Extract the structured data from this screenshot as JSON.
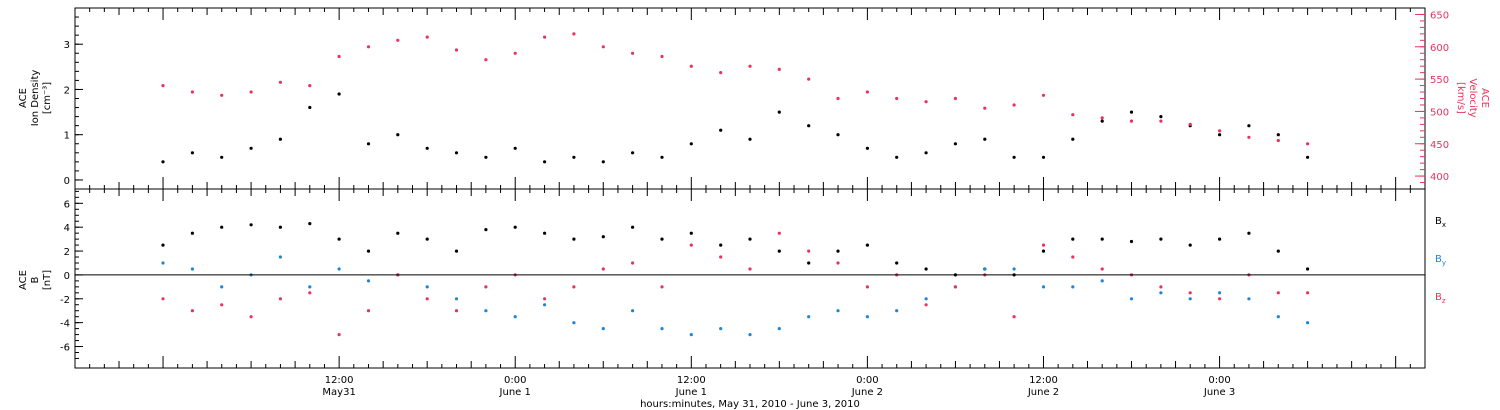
{
  "chart_data": [
    {
      "type": "scatter",
      "panel": "top",
      "ylabel_left": [
        "ACE",
        "Ion Density",
        "[cm⁻³]"
      ],
      "ylabel_right": [
        "ACE",
        "Velocity",
        "[km/s]"
      ],
      "ylim_left": [
        -0.2,
        3.8
      ],
      "ylim_right": [
        380,
        660
      ],
      "yticks_left": [
        0,
        1,
        2,
        3
      ],
      "yticks_right": [
        400,
        450,
        500,
        550,
        600,
        650
      ],
      "grid": false,
      "series": [
        {
          "axis": "left",
          "color": "#000000",
          "x": [
            0,
            2,
            4,
            6,
            8,
            10,
            12,
            14,
            16,
            18,
            20,
            22,
            24,
            26,
            28,
            30,
            32,
            34,
            36,
            38,
            40,
            42,
            44,
            46,
            48,
            50,
            52,
            54,
            56,
            58,
            60,
            62,
            64,
            66,
            68,
            70,
            72,
            74,
            76,
            78
          ],
          "values": [
            0.4,
            0.6,
            0.5,
            0.7,
            0.9,
            1.6,
            1.9,
            0.8,
            1.0,
            0.7,
            0.6,
            0.5,
            0.7,
            0.4,
            0.5,
            0.4,
            0.6,
            0.5,
            0.8,
            1.1,
            0.9,
            1.5,
            1.2,
            1.0,
            0.7,
            0.5,
            0.6,
            0.8,
            0.9,
            0.5,
            0.5,
            0.9,
            1.3,
            1.5,
            1.4,
            1.2,
            1.0,
            1.2,
            1.0,
            0.5
          ]
        },
        {
          "axis": "right",
          "color": "#e8335e",
          "x": [
            0,
            2,
            4,
            6,
            8,
            10,
            12,
            14,
            16,
            18,
            20,
            22,
            24,
            26,
            28,
            30,
            32,
            34,
            36,
            38,
            40,
            42,
            44,
            46,
            48,
            50,
            52,
            54,
            56,
            58,
            60,
            62,
            64,
            66,
            68,
            70,
            72,
            74,
            76,
            78
          ],
          "values": [
            540,
            530,
            525,
            530,
            545,
            540,
            585,
            600,
            610,
            615,
            595,
            580,
            590,
            615,
            620,
            600,
            590,
            585,
            570,
            560,
            570,
            565,
            550,
            520,
            530,
            520,
            515,
            520,
            505,
            510,
            525,
            495,
            490,
            485,
            485,
            480,
            470,
            460,
            455,
            450
          ]
        }
      ]
    },
    {
      "type": "scatter",
      "panel": "bottom",
      "ylabel": [
        "ACE",
        "B",
        "[nT]"
      ],
      "ylim": [
        -7.8,
        7.2
      ],
      "yticks": [
        -6,
        -4,
        -2,
        0,
        2,
        4,
        6
      ],
      "zero_line": true,
      "grid": false,
      "legend_position": "right",
      "series": [
        {
          "name": "Bx",
          "color": "#000000",
          "x": [
            0,
            2,
            4,
            6,
            8,
            10,
            12,
            14,
            16,
            18,
            20,
            22,
            24,
            26,
            28,
            30,
            32,
            34,
            36,
            38,
            40,
            42,
            44,
            46,
            48,
            50,
            52,
            54,
            56,
            58,
            60,
            62,
            64,
            66,
            68,
            70,
            72,
            74,
            76,
            78
          ],
          "values": [
            2.5,
            3.5,
            4.0,
            4.2,
            4.0,
            4.3,
            3.0,
            2.0,
            3.5,
            3.0,
            2.0,
            3.8,
            4.0,
            3.5,
            3.0,
            3.2,
            4.0,
            3.0,
            3.5,
            2.5,
            3.0,
            2.0,
            1.0,
            2.0,
            2.5,
            1.0,
            0.5,
            0.0,
            0.5,
            0.0,
            2.0,
            3.0,
            3.0,
            2.8,
            3.0,
            2.5,
            3.0,
            3.5,
            2.0,
            0.5
          ]
        },
        {
          "name": "By",
          "color": "#1f86d6",
          "x": [
            0,
            2,
            4,
            6,
            8,
            10,
            12,
            14,
            16,
            18,
            20,
            22,
            24,
            26,
            28,
            30,
            32,
            34,
            36,
            38,
            40,
            42,
            44,
            46,
            48,
            50,
            52,
            54,
            56,
            58,
            60,
            62,
            64,
            66,
            68,
            70,
            72,
            74,
            76,
            78
          ],
          "values": [
            1.0,
            0.5,
            -1.0,
            0.0,
            1.5,
            -1.0,
            0.5,
            -0.5,
            0.0,
            -1.0,
            -2.0,
            -3.0,
            -3.5,
            -2.5,
            -4.0,
            -4.5,
            -3.0,
            -4.5,
            -5.0,
            -4.5,
            -5.0,
            -4.5,
            -3.5,
            -3.0,
            -3.5,
            -3.0,
            -2.0,
            -1.0,
            0.5,
            0.5,
            -1.0,
            -1.0,
            -0.5,
            -2.0,
            -1.5,
            -2.0,
            -1.5,
            -2.0,
            -3.5,
            -4.0
          ]
        },
        {
          "name": "Bz",
          "color": "#e8335e",
          "x": [
            0,
            2,
            4,
            6,
            8,
            10,
            12,
            14,
            16,
            18,
            20,
            22,
            24,
            26,
            28,
            30,
            32,
            34,
            36,
            38,
            40,
            42,
            44,
            46,
            48,
            50,
            52,
            54,
            56,
            58,
            60,
            62,
            64,
            66,
            68,
            70,
            72,
            74,
            76,
            78
          ],
          "values": [
            -2.0,
            -3.0,
            -2.5,
            -3.5,
            -2.0,
            -1.5,
            -5.0,
            -3.0,
            0.0,
            -2.0,
            -3.0,
            -1.0,
            0.0,
            -2.0,
            -1.0,
            0.5,
            1.0,
            -1.0,
            2.5,
            1.5,
            0.5,
            3.5,
            2.0,
            1.0,
            -1.0,
            0.0,
            -2.5,
            -1.0,
            0.0,
            -3.5,
            2.5,
            1.5,
            0.5,
            0.0,
            -1.0,
            -1.5,
            -2.0,
            0.0,
            -1.5,
            -1.5
          ]
        }
      ]
    }
  ],
  "xaxis": {
    "range_hours": [
      -6,
      86
    ],
    "major_ticks": [
      {
        "hours": 12,
        "time": "12:00",
        "date": "May31"
      },
      {
        "hours": 24,
        "time": "0:00",
        "date": "June 1"
      },
      {
        "hours": 36,
        "time": "12:00",
        "date": "June 1"
      },
      {
        "hours": 48,
        "time": "0:00",
        "date": "June 2"
      },
      {
        "hours": 60,
        "time": "12:00",
        "date": "June 2"
      },
      {
        "hours": 72,
        "time": "0:00",
        "date": "June 3"
      }
    ],
    "xlabel": "hours:minutes, May 31, 2010 - June  3, 2010"
  },
  "legend": [
    {
      "label": "B",
      "sub": "x",
      "color": "#000000"
    },
    {
      "label": "B",
      "sub": "y",
      "color": "#1f86d6"
    },
    {
      "label": "B",
      "sub": "z",
      "color": "#e8335e"
    }
  ]
}
